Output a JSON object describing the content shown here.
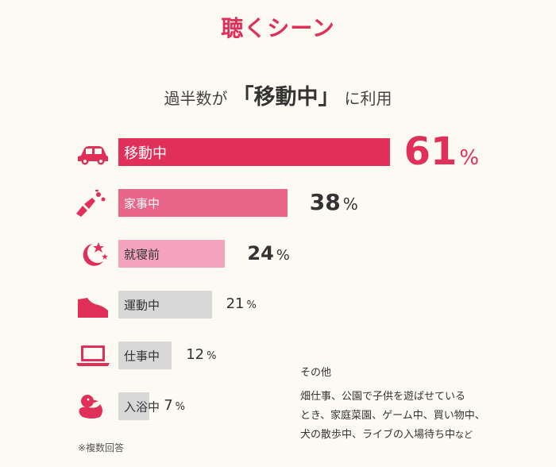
{
  "title": "聴くシーン",
  "subtitle": {
    "before": "過半数が",
    "emphasis": "「移動中」",
    "after": "に利用"
  },
  "chart_data": {
    "type": "bar",
    "orientation": "horizontal",
    "title": "聴くシーン",
    "categories": [
      "移動中",
      "家事中",
      "就寝前",
      "運動中",
      "仕事中",
      "入浴中"
    ],
    "values": [
      61,
      38,
      24,
      21,
      12,
      7
    ],
    "value_labels": [
      "61",
      "38",
      "24",
      "21",
      "12",
      "7"
    ],
    "unit": "%",
    "xlim": [
      0,
      100
    ],
    "grid": false,
    "legend": "none",
    "bar_colors": [
      "#e0305a",
      "#ea6688",
      "#f4a3be",
      "#d8d8d8",
      "#d8d8d8",
      "#d8d8d8"
    ],
    "label_colors": [
      "#ffffff",
      "#ffffff",
      "#333333",
      "#333333",
      "#333333",
      "#333333"
    ],
    "value_colors": [
      "#e0305a",
      "#333333",
      "#333333",
      "#333333",
      "#333333",
      "#333333"
    ],
    "value_weights": [
      "bold",
      "bold",
      "bold",
      "normal",
      "normal",
      "normal"
    ],
    "icons": [
      "car-icon",
      "cleaning-icon",
      "moon-stars-icon",
      "sneaker-icon",
      "laptop-icon",
      "rubber-duck-icon"
    ],
    "icon_colors": [
      "#e0305a",
      "#e0305a",
      "#e0305a",
      "#e0305a",
      "#e0305a",
      "#e0305a"
    ]
  },
  "others": {
    "title": "その他",
    "lines": [
      "畑仕事、公園で子供を遊ばせている",
      "とき、家庭菜園、ゲーム中、買い物中、",
      "犬の散歩中、ライブの入場待ち中"
    ],
    "tail": "など"
  },
  "footnote": "※複数回答",
  "colors": {
    "accent": "#e0305a",
    "background": "#fdfaf3"
  }
}
